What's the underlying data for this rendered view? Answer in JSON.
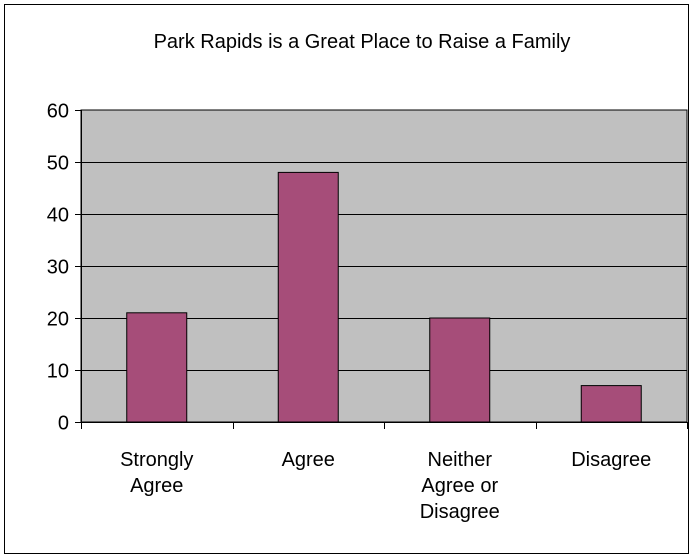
{
  "chart_data": {
    "type": "bar",
    "title": "Park Rapids is a Great Place to Raise a Family",
    "categories": [
      [
        "Strongly",
        "Agree"
      ],
      [
        "Agree"
      ],
      [
        "Neither",
        "Agree or",
        "Disagree"
      ],
      [
        "Disagree"
      ]
    ],
    "values": [
      21,
      48,
      20,
      7
    ],
    "ylim": [
      0,
      60
    ],
    "yticks": [
      0,
      10,
      20,
      30,
      40,
      50,
      60
    ],
    "grid": true,
    "legend": "none",
    "colors": {
      "bar": "#a64d79",
      "plot_background": "#c0c0c0",
      "gridline": "#000000"
    }
  }
}
